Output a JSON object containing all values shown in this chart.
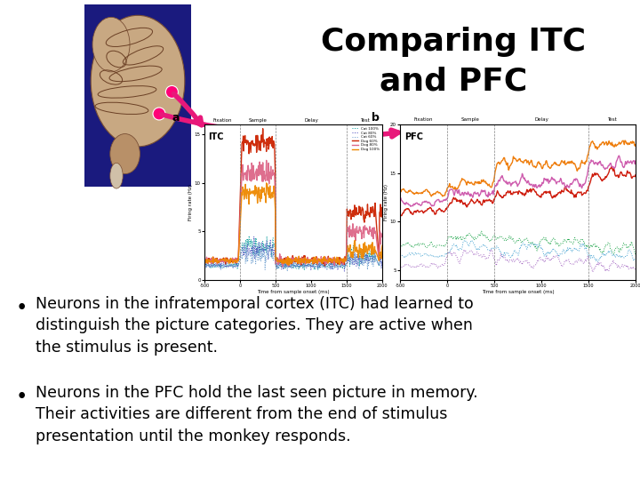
{
  "title_line1": "Comparing ITC",
  "title_line2": "and PFC",
  "title_fontsize": 26,
  "title_color": "#000000",
  "background_color": "#ffffff",
  "bullet1_line1": "Neurons in the infratemporal cortex (ITC) had learned to",
  "bullet1_line2": "distinguish the picture categories. They are active when",
  "bullet1_line3": "the stimulus is present.",
  "bullet2_line1": "Neurons in the PFC hold the last seen picture in memory.",
  "bullet2_line2": "Their activities are different from the end of stimulus",
  "bullet2_line3": "presentation until the monkey responds.",
  "bullet_fontsize": 12.5,
  "arrow_color": "#e8187a",
  "arrow_linewidth": 4.0,
  "brain_bg": "#1a1a7e",
  "dot_color": "#ff0077"
}
